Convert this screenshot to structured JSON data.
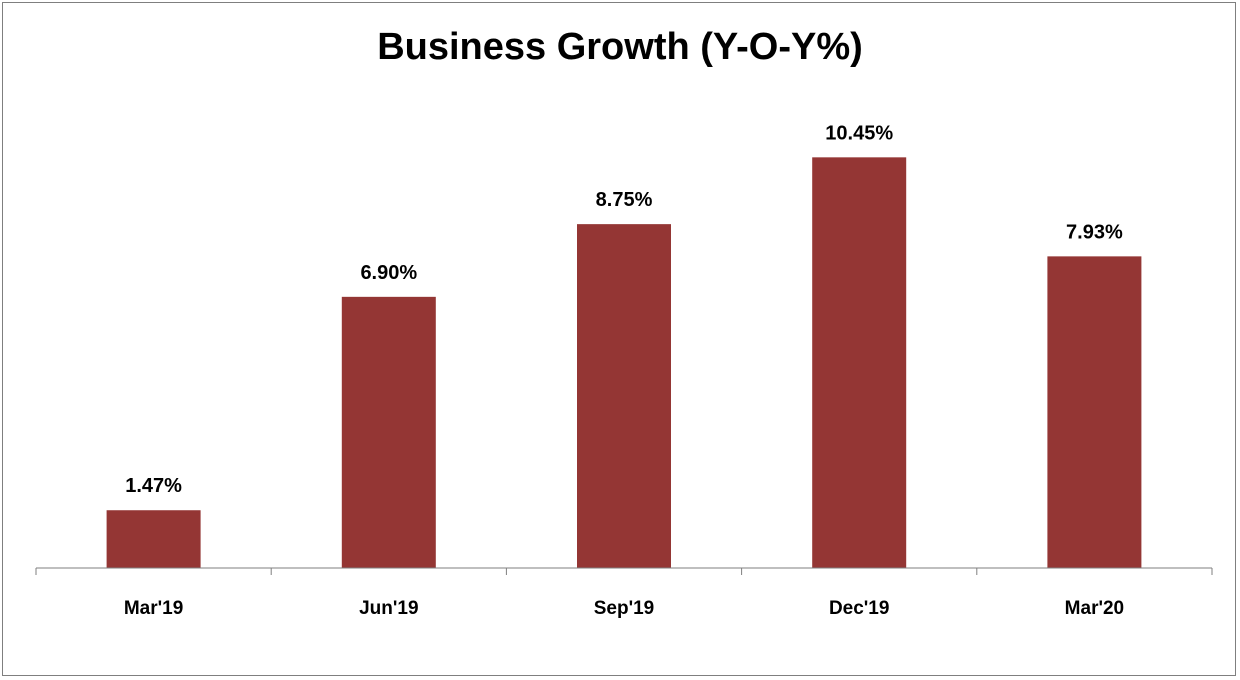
{
  "chart_data": {
    "type": "bar",
    "title": "Business Growth (Y-O-Y%)",
    "categories": [
      "Mar'19",
      "Jun'19",
      "Sep'19",
      "Dec'19",
      "Mar'20"
    ],
    "values": [
      1.47,
      6.9,
      8.75,
      10.45,
      7.93
    ],
    "data_labels": [
      "1.47%",
      "6.90%",
      "8.75%",
      "10.45%",
      "7.93%"
    ],
    "ylim": [
      0,
      11.4
    ],
    "grid": false,
    "legend": "none",
    "bar_color": "#943634"
  }
}
